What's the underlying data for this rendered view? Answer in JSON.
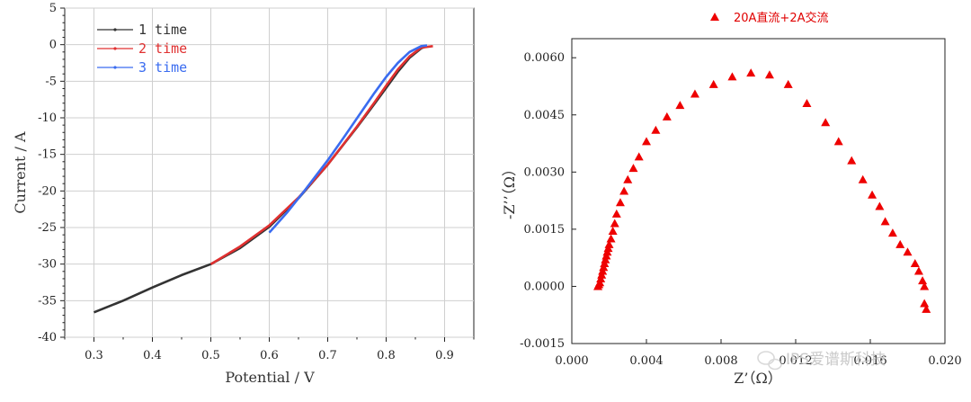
{
  "watermark": "IPS爱谱斯科技",
  "chart_data": [
    {
      "type": "line",
      "title": "",
      "xlabel": "Potential / V",
      "ylabel": "Current / A",
      "xlim": [
        0.25,
        0.95
      ],
      "ylim": [
        -40,
        5
      ],
      "xticks": [
        "0.3",
        "0.4",
        "0.5",
        "0.6",
        "0.7",
        "0.8",
        "0.9"
      ],
      "yticks": [
        "5",
        "0",
        "-5",
        "-10",
        "-15",
        "-20",
        "-25",
        "-30",
        "-35",
        "-40"
      ],
      "grid": true,
      "legend_position": "top-left",
      "series": [
        {
          "name": "1 time",
          "color": "#333333",
          "x": [
            0.3,
            0.35,
            0.4,
            0.45,
            0.5,
            0.55,
            0.6,
            0.65,
            0.7,
            0.75,
            0.78,
            0.8,
            0.82,
            0.84,
            0.86,
            0.87
          ],
          "y": [
            -36.6,
            -35.0,
            -33.2,
            -31.5,
            -30.0,
            -27.8,
            -24.9,
            -21.0,
            -16.4,
            -11.3,
            -8.1,
            -5.9,
            -3.7,
            -1.8,
            -0.5,
            -0.2
          ]
        },
        {
          "name": "2 time",
          "color": "#e03030",
          "x": [
            0.5,
            0.55,
            0.6,
            0.65,
            0.7,
            0.75,
            0.78,
            0.8,
            0.82,
            0.84,
            0.86,
            0.88
          ],
          "y": [
            -30.0,
            -27.6,
            -24.7,
            -20.9,
            -16.4,
            -11.2,
            -7.9,
            -5.6,
            -3.4,
            -1.6,
            -0.4,
            -0.2
          ]
        },
        {
          "name": "3 time",
          "color": "#3a6cf0",
          "x": [
            0.6,
            0.63,
            0.66,
            0.7,
            0.73,
            0.76,
            0.78,
            0.8,
            0.82,
            0.84,
            0.86,
            0.87
          ],
          "y": [
            -25.7,
            -23.0,
            -20.0,
            -15.8,
            -12.4,
            -8.9,
            -6.6,
            -4.4,
            -2.5,
            -1.0,
            -0.2,
            -0.1
          ]
        }
      ]
    },
    {
      "type": "scatter",
      "title": "",
      "xlabel": "Z’（Ω）",
      "ylabel": "-Z’’（Ω）",
      "xlim": [
        0.0,
        0.02
      ],
      "ylim": [
        -0.0015,
        0.0065
      ],
      "xticks": [
        "0.000",
        "0.004",
        "0.008",
        "0.012",
        "0.016",
        "0.020"
      ],
      "yticks": [
        "0.0060",
        "0.0045",
        "0.0030",
        "0.0015",
        "0.0000",
        "-0.0015"
      ],
      "grid": false,
      "legend_position": "top-center",
      "series": [
        {
          "name": "20A直流+2A交流",
          "color": "#ee0000",
          "marker": "triangle",
          "x": [
            0.0014,
            0.00145,
            0.0015,
            0.00155,
            0.0016,
            0.00165,
            0.0017,
            0.00175,
            0.0018,
            0.00185,
            0.0019,
            0.00195,
            0.002,
            0.0021,
            0.0022,
            0.0023,
            0.0024,
            0.0026,
            0.0028,
            0.003,
            0.0033,
            0.0036,
            0.004,
            0.0045,
            0.0051,
            0.0058,
            0.0066,
            0.0076,
            0.0086,
            0.0096,
            0.0106,
            0.0116,
            0.0126,
            0.0136,
            0.0143,
            0.015,
            0.0156,
            0.0161,
            0.0165,
            0.0168,
            0.0172,
            0.0176,
            0.018,
            0.0184,
            0.0186,
            0.0188,
            0.0189,
            0.0189,
            0.019
          ],
          "y": [
            0.0,
            5e-05,
            0.0001,
            0.0002,
            0.0003,
            0.0004,
            0.0005,
            0.0006,
            0.0007,
            0.0008,
            0.0009,
            0.001,
            0.0011,
            0.00125,
            0.00145,
            0.00165,
            0.0019,
            0.0022,
            0.0025,
            0.0028,
            0.0031,
            0.0034,
            0.0038,
            0.0041,
            0.00445,
            0.00475,
            0.00505,
            0.0053,
            0.0055,
            0.0056,
            0.00555,
            0.0053,
            0.0048,
            0.0043,
            0.0038,
            0.0033,
            0.0028,
            0.0024,
            0.0021,
            0.0017,
            0.0014,
            0.0011,
            0.0009,
            0.0006,
            0.0004,
            0.00015,
            0.0,
            -0.00045,
            -0.0006
          ]
        }
      ]
    }
  ]
}
